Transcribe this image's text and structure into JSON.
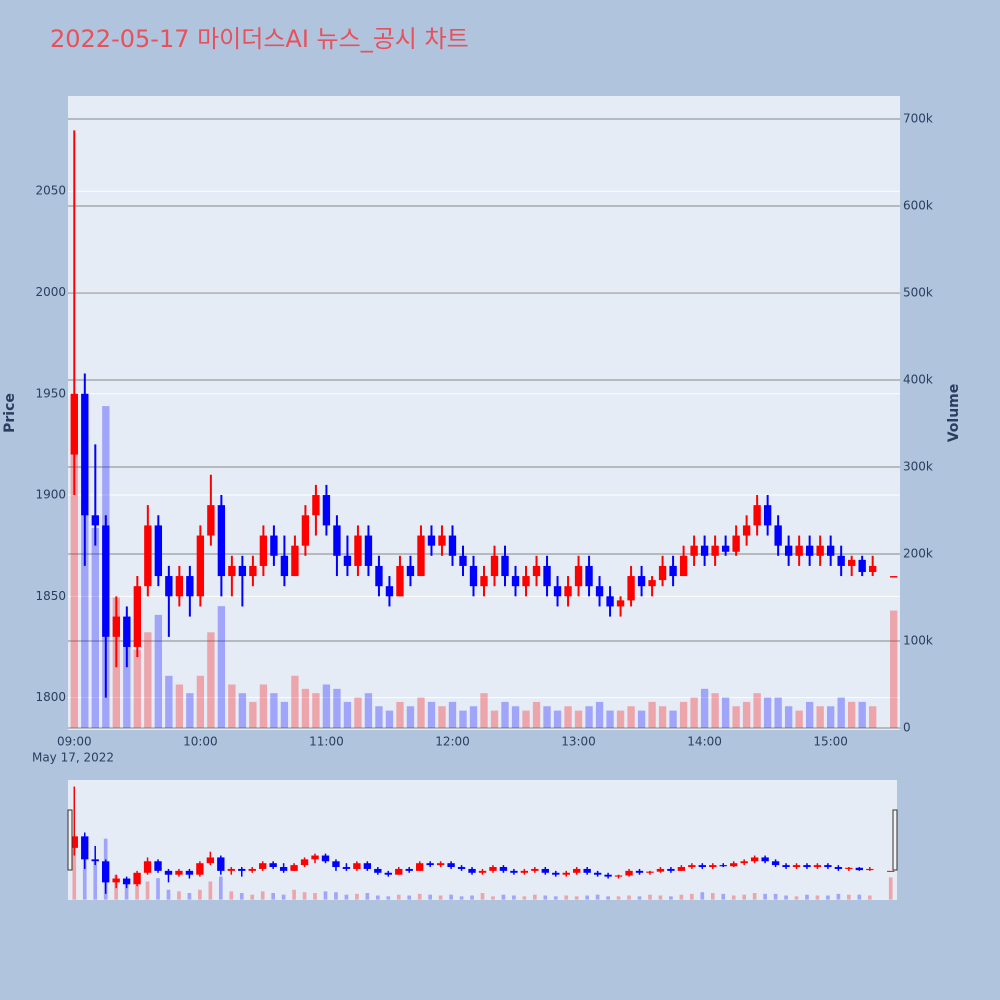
{
  "chart_data": {
    "type": "candlestick",
    "title": "2022-05-17 마이더스AI 뉴스_공시 차트",
    "x_label": "May 17, 2022",
    "y_label": "Price",
    "y2_label": "Volume",
    "increasing_color": "#ff0000",
    "decreasing_color": "#0000ff",
    "xlim": [
      "08:57",
      "15:33"
    ],
    "xticks": [
      "09:00",
      "10:00",
      "11:00",
      "12:00",
      "13:00",
      "14:00",
      "15:00"
    ],
    "ylim": [
      1784,
      2097
    ],
    "yticks": [
      1800,
      1850,
      1900,
      1950,
      2000,
      2050
    ],
    "y2lim": [
      -2300,
      726400
    ],
    "y2ticks": [
      0,
      {
        "value": 100000,
        "label": "100k"
      },
      {
        "value": 200000,
        "label": "200k"
      },
      {
        "value": 300000,
        "label": "300k"
      },
      {
        "value": 400000,
        "label": "400k"
      },
      {
        "value": 500000,
        "label": "500k"
      },
      {
        "value": 600000,
        "label": "600k"
      },
      {
        "value": 700000,
        "label": "700k"
      }
    ],
    "grid": true,
    "range_slider": true,
    "x": [
      "09:00",
      "09:05",
      "09:10",
      "09:15",
      "09:20",
      "09:25",
      "09:30",
      "09:35",
      "09:40",
      "09:45",
      "09:50",
      "09:55",
      "10:00",
      "10:05",
      "10:10",
      "10:15",
      "10:20",
      "10:25",
      "10:30",
      "10:35",
      "10:40",
      "10:45",
      "10:50",
      "10:55",
      "11:00",
      "11:05",
      "11:10",
      "11:15",
      "11:20",
      "11:25",
      "11:30",
      "11:35",
      "11:40",
      "11:45",
      "11:50",
      "11:55",
      "12:00",
      "12:05",
      "12:10",
      "12:15",
      "12:20",
      "12:25",
      "12:30",
      "12:35",
      "12:40",
      "12:45",
      "12:50",
      "12:55",
      "13:00",
      "13:05",
      "13:10",
      "13:15",
      "13:20",
      "13:25",
      "13:30",
      "13:35",
      "13:40",
      "13:45",
      "13:50",
      "13:55",
      "14:00",
      "14:05",
      "14:10",
      "14:15",
      "14:20",
      "14:25",
      "14:30",
      "14:35",
      "14:40",
      "14:45",
      "14:50",
      "14:55",
      "15:00",
      "15:05",
      "15:10",
      "15:15",
      "15:20",
      "15:30"
    ],
    "open": [
      1920,
      1950,
      1890,
      1885,
      1830,
      1840,
      1825,
      1855,
      1885,
      1860,
      1850,
      1860,
      1850,
      1880,
      1895,
      1860,
      1865,
      1860,
      1865,
      1880,
      1870,
      1860,
      1875,
      1890,
      1900,
      1885,
      1870,
      1865,
      1880,
      1865,
      1855,
      1850,
      1865,
      1860,
      1880,
      1875,
      1880,
      1870,
      1865,
      1855,
      1860,
      1870,
      1860,
      1855,
      1860,
      1865,
      1855,
      1850,
      1855,
      1865,
      1855,
      1850,
      1845,
      1848,
      1860,
      1855,
      1858,
      1865,
      1860,
      1870,
      1875,
      1870,
      1875,
      1872,
      1880,
      1885,
      1895,
      1885,
      1875,
      1870,
      1875,
      1870,
      1875,
      1870,
      1865,
      1868,
      1862,
      1860
    ],
    "high": [
      2080,
      1960,
      1925,
      1890,
      1850,
      1845,
      1860,
      1895,
      1890,
      1865,
      1865,
      1865,
      1885,
      1910,
      1900,
      1870,
      1870,
      1870,
      1885,
      1885,
      1880,
      1880,
      1895,
      1905,
      1905,
      1890,
      1880,
      1885,
      1885,
      1870,
      1860,
      1870,
      1870,
      1885,
      1885,
      1885,
      1885,
      1875,
      1870,
      1865,
      1875,
      1875,
      1865,
      1865,
      1870,
      1870,
      1860,
      1860,
      1870,
      1870,
      1860,
      1855,
      1850,
      1865,
      1865,
      1860,
      1870,
      1870,
      1875,
      1880,
      1880,
      1880,
      1880,
      1885,
      1890,
      1900,
      1900,
      1890,
      1880,
      1880,
      1880,
      1880,
      1880,
      1875,
      1870,
      1870,
      1870,
      1860
    ],
    "low": [
      1900,
      1865,
      1875,
      1800,
      1815,
      1815,
      1820,
      1850,
      1855,
      1830,
      1845,
      1840,
      1845,
      1875,
      1850,
      1850,
      1845,
      1855,
      1860,
      1865,
      1855,
      1860,
      1870,
      1880,
      1880,
      1860,
      1860,
      1860,
      1860,
      1850,
      1845,
      1850,
      1855,
      1860,
      1870,
      1870,
      1865,
      1860,
      1850,
      1850,
      1855,
      1855,
      1850,
      1850,
      1855,
      1850,
      1845,
      1845,
      1850,
      1850,
      1845,
      1840,
      1840,
      1845,
      1850,
      1850,
      1855,
      1855,
      1860,
      1865,
      1865,
      1865,
      1870,
      1870,
      1875,
      1880,
      1880,
      1870,
      1865,
      1865,
      1865,
      1865,
      1865,
      1860,
      1860,
      1860,
      1860,
      1860
    ],
    "close": [
      1950,
      1890,
      1885,
      1830,
      1840,
      1825,
      1855,
      1885,
      1860,
      1850,
      1860,
      1850,
      1880,
      1895,
      1860,
      1865,
      1860,
      1865,
      1880,
      1870,
      1860,
      1875,
      1890,
      1900,
      1885,
      1870,
      1865,
      1880,
      1865,
      1855,
      1850,
      1865,
      1860,
      1880,
      1875,
      1880,
      1870,
      1865,
      1855,
      1860,
      1870,
      1860,
      1855,
      1860,
      1865,
      1855,
      1850,
      1855,
      1865,
      1855,
      1850,
      1845,
      1848,
      1860,
      1855,
      1858,
      1865,
      1860,
      1870,
      1875,
      1870,
      1875,
      1872,
      1880,
      1885,
      1895,
      1885,
      1875,
      1870,
      1875,
      1870,
      1875,
      1870,
      1865,
      1868,
      1862,
      1865,
      1860
    ],
    "volume": [
      380000,
      260000,
      230000,
      370000,
      150000,
      120000,
      90000,
      110000,
      130000,
      60000,
      50000,
      40000,
      60000,
      110000,
      140000,
      50000,
      40000,
      30000,
      50000,
      40000,
      30000,
      60000,
      45000,
      40000,
      50000,
      45000,
      30000,
      35000,
      40000,
      25000,
      20000,
      30000,
      25000,
      35000,
      30000,
      25000,
      30000,
      20000,
      25000,
      40000,
      20000,
      30000,
      25000,
      20000,
      30000,
      25000,
      20000,
      25000,
      20000,
      25000,
      30000,
      20000,
      20000,
      25000,
      20000,
      30000,
      25000,
      20000,
      30000,
      35000,
      45000,
      40000,
      35000,
      25000,
      30000,
      40000,
      35000,
      35000,
      25000,
      20000,
      30000,
      25000,
      25000,
      35000,
      30000,
      30000,
      25000,
      135000
    ]
  }
}
